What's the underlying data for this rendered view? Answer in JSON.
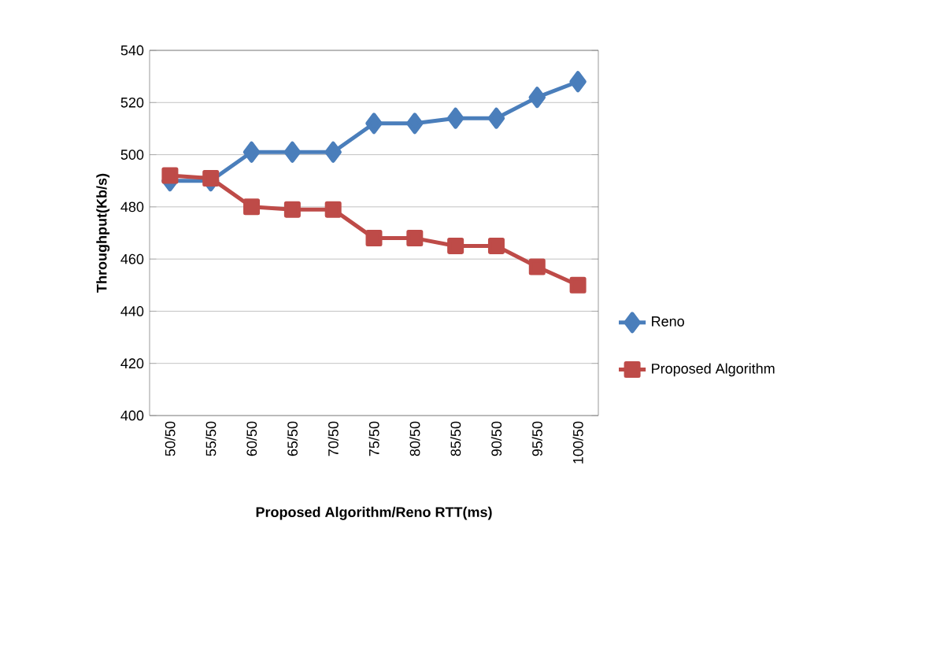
{
  "chart_data": {
    "type": "line",
    "xlabel": "Proposed Algorithm/Reno RTT(ms)",
    "ylabel": "Throughput(Kb/s)",
    "categories": [
      "50/50",
      "55/50",
      "60/50",
      "65/50",
      "70/50",
      "75/50",
      "80/50",
      "85/50",
      "90/50",
      "95/50",
      "100/50"
    ],
    "series": [
      {
        "name": "Reno",
        "color": "#4a7ebb",
        "marker": "diamond",
        "values": [
          490,
          490,
          501,
          501,
          501,
          512,
          512,
          514,
          514,
          522,
          528
        ]
      },
      {
        "name": "Proposed Algorithm",
        "color": "#be4b48",
        "marker": "square",
        "values": [
          492,
          491,
          480,
          479,
          479,
          468,
          468,
          465,
          465,
          457,
          450
        ]
      }
    ],
    "ylim": [
      400,
      540
    ],
    "yticks": [
      400,
      420,
      440,
      460,
      480,
      500,
      520,
      540
    ],
    "grid": "y",
    "legend": "right"
  }
}
